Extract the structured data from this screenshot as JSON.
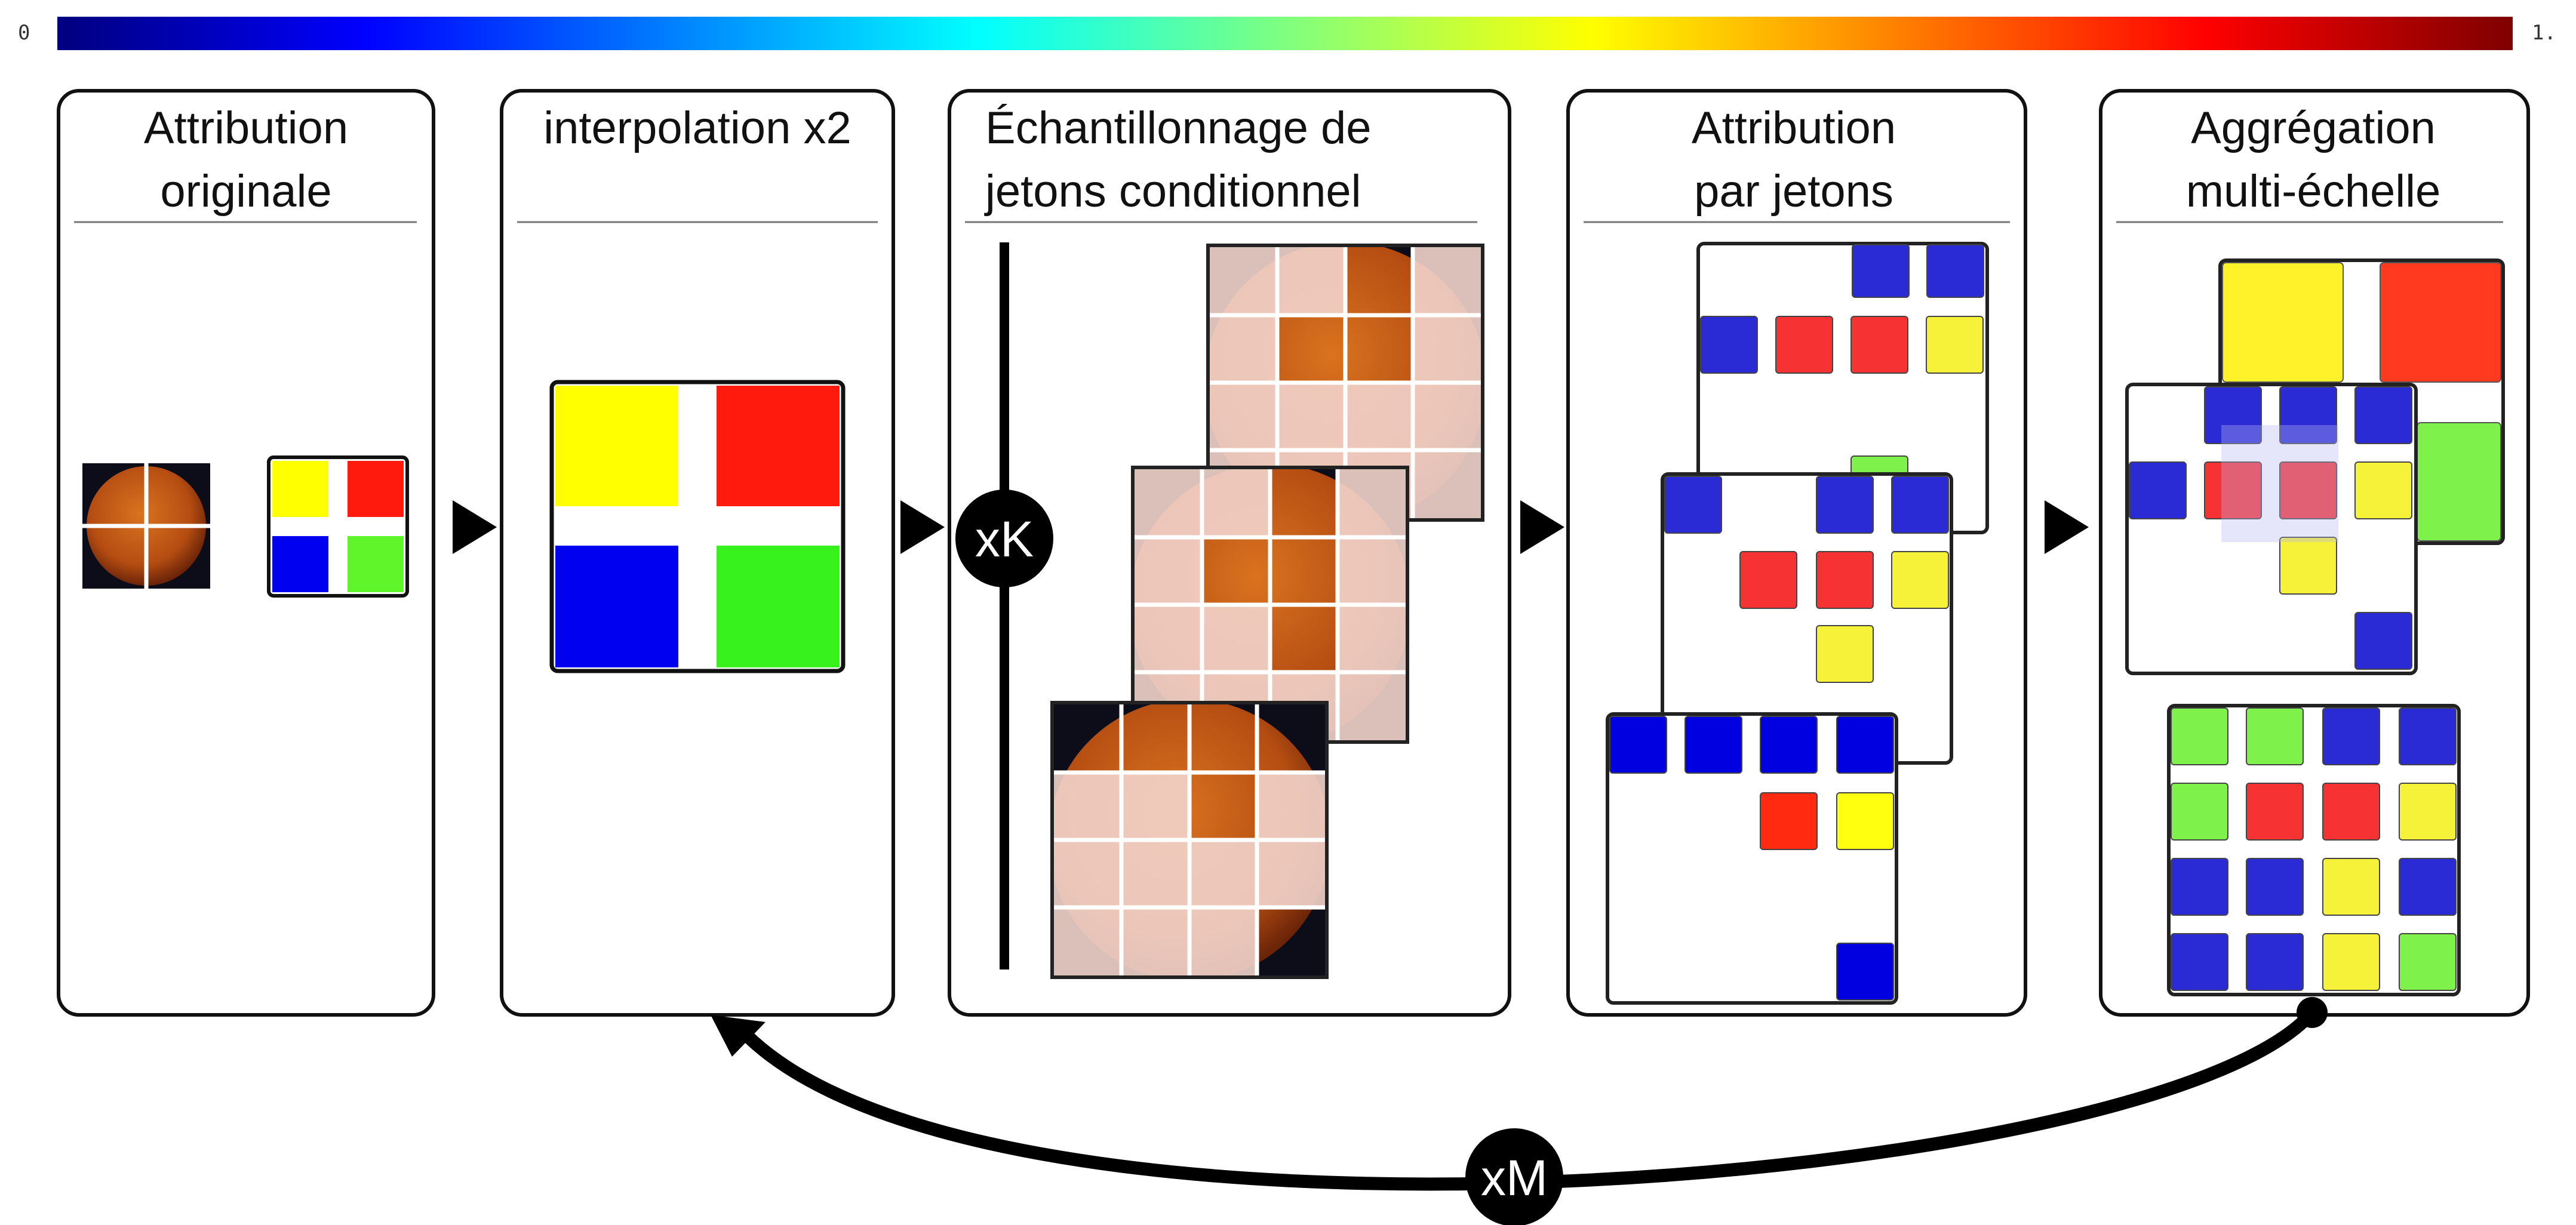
{
  "colorbar": {
    "min_label": "0",
    "max_label": "1."
  },
  "colors": {
    "yellow": "#ffff00",
    "red": "#ff1a0d",
    "blue": "#0000f0",
    "green": "#5ff52a",
    "tile_blue": "#2b2bd6",
    "tile_red": "#f73232",
    "tile_yellow": "#f6f23a",
    "tile_green": "#7ef24a",
    "fundus": "#b54d12",
    "veil": "#f2d4cc",
    "frame": "#1c1c1c"
  },
  "panels": [
    {
      "id": "p1",
      "title_lines": [
        "Attribution",
        "originale"
      ]
    },
    {
      "id": "p2",
      "title_lines": [
        "interpolation x2"
      ]
    },
    {
      "id": "p3",
      "title_lines": [
        "Échantillonnage de",
        "jetons conditionnel"
      ]
    },
    {
      "id": "p4",
      "title_lines": [
        "Attribution",
        "par jetons"
      ]
    },
    {
      "id": "p5",
      "title_lines": [
        "Aggrégation",
        "multi-échelle"
      ]
    }
  ],
  "badges": {
    "k": "xK",
    "m": "xM"
  },
  "icons": {
    "flow_arrow": "play-triangle-icon",
    "loop_arrow": "curved-return-arrow-icon"
  }
}
